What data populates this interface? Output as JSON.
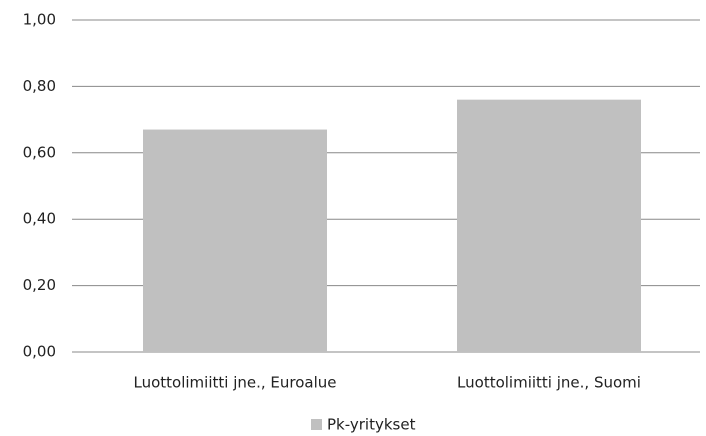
{
  "chart_data": {
    "type": "bar",
    "categories": [
      "Luottolimiitti jne., Euroalue",
      "Luottolimiitti jne., Suomi"
    ],
    "series": [
      {
        "name": "Pk-yritykset",
        "color": "#c0c0c0",
        "values": [
          0.67,
          0.76
        ]
      }
    ],
    "ylim": [
      0,
      1
    ],
    "yticks": [
      {
        "value": 0,
        "label": "0,00"
      },
      {
        "value": 0.2,
        "label": "0,20"
      },
      {
        "value": 0.4,
        "label": "0,40"
      },
      {
        "value": 0.6,
        "label": "0,60"
      },
      {
        "value": 0.8,
        "label": "0,80"
      },
      {
        "value": 1,
        "label": "1,00"
      }
    ],
    "grid": true,
    "legend": "bottom"
  }
}
